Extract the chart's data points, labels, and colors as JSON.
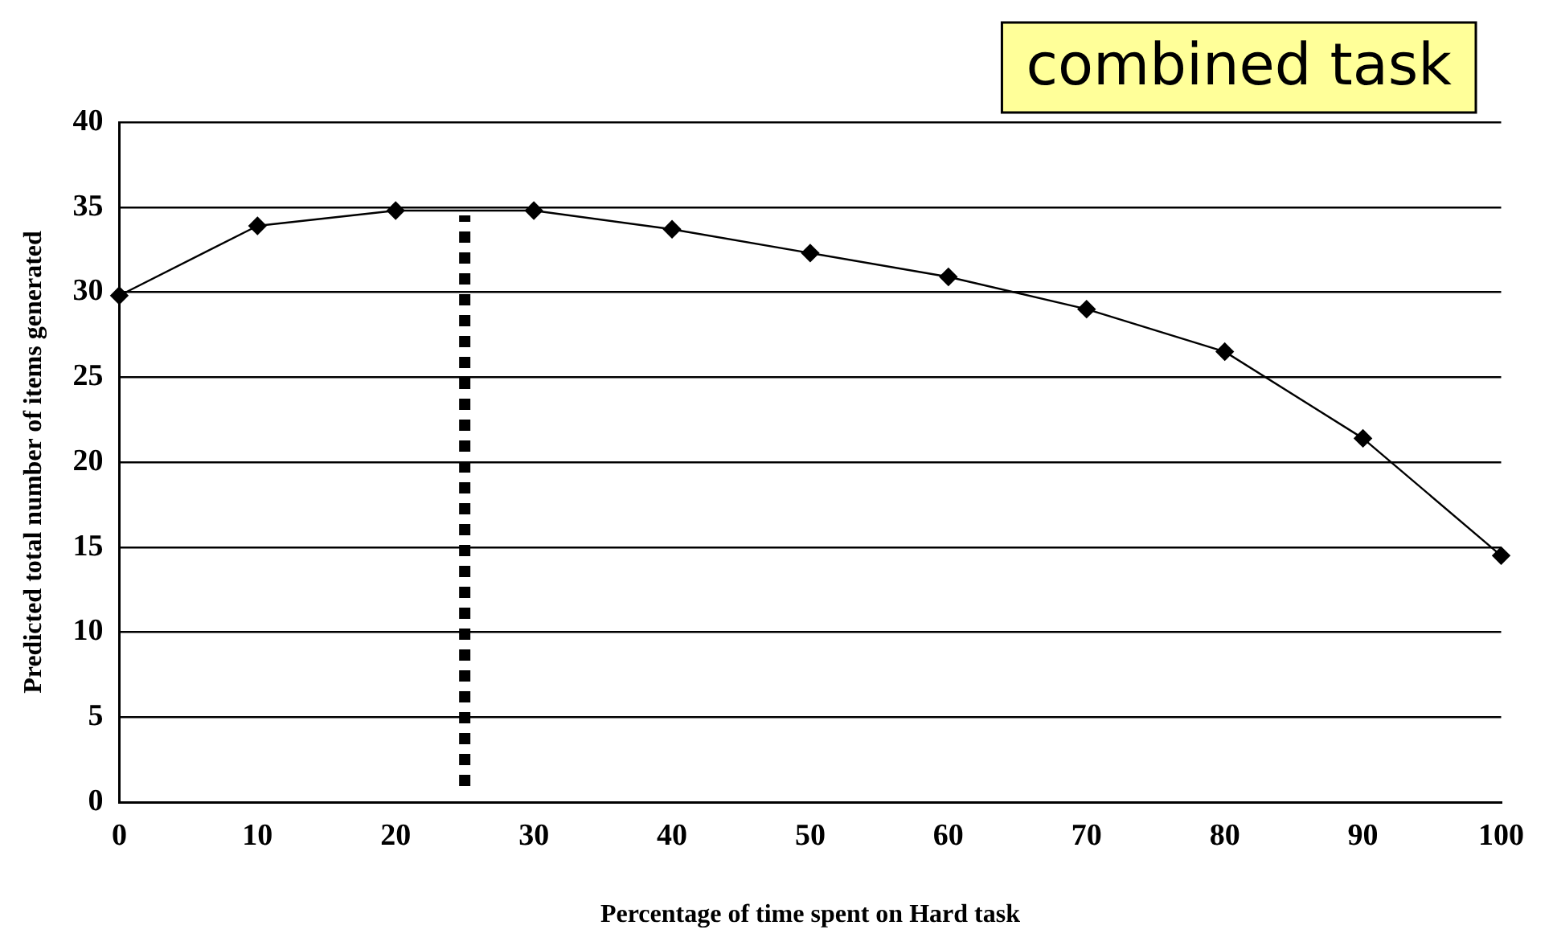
{
  "chart_data": {
    "type": "line",
    "xlabel": "Percentage of time spent on Hard task",
    "ylabel": "Predicted total number of items generated",
    "annotations": [
      "combined task"
    ],
    "x": [
      0,
      10,
      20,
      30,
      40,
      50,
      60,
      70,
      80,
      90,
      100
    ],
    "series": [
      {
        "color": "#000000",
        "values": [
          29.8,
          33.9,
          34.8,
          34.8,
          33.7,
          32.3,
          30.9,
          29.0,
          26.5,
          21.4,
          14.5
        ]
      }
    ],
    "xlim": [
      0,
      100
    ],
    "xticks": [
      0,
      10,
      20,
      30,
      40,
      50,
      60,
      70,
      80,
      90,
      100
    ],
    "ylim": [
      0,
      40
    ],
    "yticks": [
      0,
      5,
      10,
      15,
      20,
      25,
      30,
      35,
      40
    ],
    "ref_lines": [
      {
        "axis": "x",
        "value": 25,
        "color": "#000000",
        "line_style": "dotted"
      }
    ],
    "grid": "y",
    "legend": false,
    "marker": "diamond",
    "line_style": "solid"
  }
}
